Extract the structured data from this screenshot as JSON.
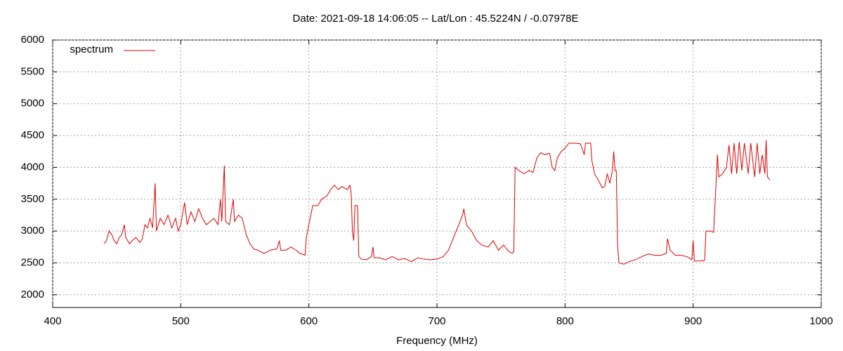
{
  "chart_data": {
    "type": "line",
    "title": "Date: 2021-09-18 14:06:05  --  Lat/Lon : 45.5224N / -0.07978E",
    "x_label": "Frequency (MHz)",
    "xlim": [
      400,
      1000
    ],
    "xticks": [
      400,
      500,
      600,
      700,
      800,
      900,
      1000
    ],
    "ylim": [
      1800,
      6000
    ],
    "yticks": [
      2000,
      2500,
      3000,
      3500,
      4000,
      4500,
      5000,
      5500,
      6000
    ],
    "grid": true,
    "legend": "top-left",
    "x": [
      440,
      442,
      444,
      446,
      448,
      450,
      452,
      454,
      456,
      457,
      460,
      462,
      465,
      468,
      470,
      472,
      474,
      476,
      478,
      480,
      481,
      484,
      487,
      490,
      493,
      496,
      498,
      500,
      503,
      505,
      508,
      511,
      514,
      517,
      520,
      523,
      526,
      529,
      531,
      532,
      534,
      535,
      538,
      541,
      542,
      545,
      548,
      551,
      554,
      557,
      560,
      565,
      570,
      575,
      577,
      578,
      582,
      586,
      590,
      593,
      597,
      598,
      600,
      603,
      607,
      610,
      614,
      617,
      620,
      623,
      626,
      630,
      632,
      633,
      634,
      635,
      636,
      638,
      639,
      641,
      645,
      649,
      650,
      651,
      655,
      660,
      665,
      670,
      675,
      680,
      685,
      690,
      695,
      700,
      705,
      709,
      713,
      717,
      720,
      721,
      723,
      727,
      731,
      735,
      740,
      744,
      748,
      752,
      756,
      759,
      760,
      761,
      764,
      768,
      772,
      775,
      778,
      781,
      784,
      788,
      790,
      792,
      794,
      797,
      800,
      803,
      808,
      812,
      815,
      816,
      820,
      821,
      823,
      826,
      829,
      831,
      833,
      835,
      837,
      838,
      839,
      840,
      841,
      842,
      846,
      850,
      855,
      860,
      865,
      870,
      875,
      879,
      880,
      882,
      886,
      890,
      895,
      899,
      900,
      901,
      905,
      909,
      910,
      913,
      916,
      918,
      919,
      920,
      923,
      926,
      928,
      930,
      932,
      934,
      936,
      938,
      940,
      943,
      945,
      948,
      950,
      952,
      954,
      956,
      957,
      958,
      960
    ],
    "series": [
      {
        "name": "spectrum",
        "color": "#dd0000",
        "values": [
          2800,
          2850,
          3000,
          2950,
          2850,
          2800,
          2900,
          2950,
          3100,
          2900,
          2800,
          2850,
          2900,
          2820,
          2880,
          3100,
          3050,
          3200,
          3050,
          3750,
          3000,
          3200,
          3100,
          3250,
          3050,
          3200,
          3000,
          3100,
          3450,
          3100,
          3300,
          3150,
          3350,
          3200,
          3100,
          3150,
          3200,
          3100,
          3500,
          3150,
          4030,
          3150,
          3100,
          3500,
          3150,
          3250,
          3200,
          2950,
          2800,
          2720,
          2700,
          2650,
          2700,
          2720,
          2850,
          2700,
          2700,
          2750,
          2700,
          2650,
          2620,
          2900,
          3100,
          3400,
          3400,
          3500,
          3550,
          3650,
          3720,
          3650,
          3700,
          3650,
          3720,
          3600,
          3000,
          2850,
          3400,
          3400,
          2600,
          2560,
          2550,
          2600,
          2750,
          2580,
          2580,
          2550,
          2600,
          2550,
          2570,
          2520,
          2580,
          2560,
          2550,
          2560,
          2600,
          2700,
          2900,
          3100,
          3250,
          3350,
          3100,
          3000,
          2850,
          2780,
          2750,
          2850,
          2700,
          2780,
          2680,
          2650,
          2680,
          4000,
          3950,
          3900,
          3950,
          3920,
          4150,
          4230,
          4200,
          4220,
          4000,
          3950,
          4150,
          4250,
          4300,
          4380,
          4380,
          4370,
          4200,
          4380,
          4380,
          4100,
          3900,
          3800,
          3680,
          3700,
          3900,
          3750,
          3950,
          4250,
          3950,
          3950,
          2800,
          2500,
          2480,
          2520,
          2550,
          2600,
          2640,
          2620,
          2620,
          2650,
          2880,
          2700,
          2620,
          2620,
          2600,
          2550,
          2850,
          2530,
          2530,
          2540,
          3000,
          3000,
          2980,
          3800,
          4200,
          3850,
          3900,
          4000,
          4350,
          3900,
          4380,
          3900,
          4400,
          3950,
          4380,
          3900,
          4380,
          3850,
          4380,
          3900,
          4200,
          3900,
          4430,
          3850,
          3800
        ]
      }
    ]
  }
}
